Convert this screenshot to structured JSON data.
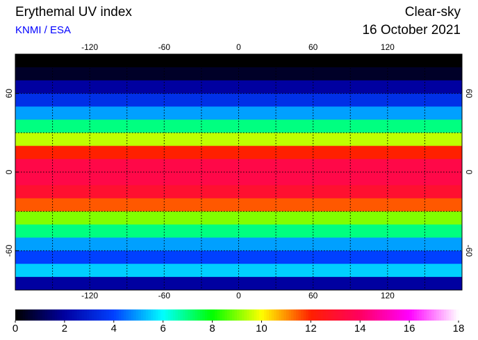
{
  "chart_data": {
    "type": "map",
    "title": "Erythemal UV index",
    "source": "KNMI / ESA",
    "condition": "Clear-sky",
    "date": "16 October 2021",
    "xlim": [
      -180,
      180
    ],
    "ylim": [
      -90,
      90
    ],
    "xticks": [
      -120,
      -60,
      0,
      60,
      120
    ],
    "yticks": [
      -60,
      0,
      60
    ],
    "xgrid": [
      -150,
      -120,
      -90,
      -60,
      -30,
      0,
      30,
      60,
      90,
      120,
      150
    ],
    "ygrid": [
      -60,
      -30,
      0,
      30,
      60
    ],
    "latitudes": [
      85,
      75,
      65,
      55,
      45,
      35,
      25,
      15,
      5,
      -5,
      -15,
      -25,
      -35,
      -45,
      -55,
      -65,
      -75,
      -85
    ],
    "values": [
      0,
      0.5,
      2,
      3.5,
      5,
      7,
      9.5,
      12,
      13.5,
      13.5,
      13,
      11.5,
      9,
      7,
      5,
      4,
      5.5,
      2
    ],
    "colorbar_lim": [
      0,
      18
    ],
    "colorbar_ticks": [
      0,
      2,
      4,
      6,
      8,
      10,
      12,
      14,
      16,
      18
    ],
    "colorbar_colors": [
      "#000000",
      "#0000a0",
      "#0040ff",
      "#00ffff",
      "#00ff00",
      "#ffff00",
      "#ff2000",
      "#ff0060",
      "#ff00ff",
      "#ffffff"
    ]
  }
}
